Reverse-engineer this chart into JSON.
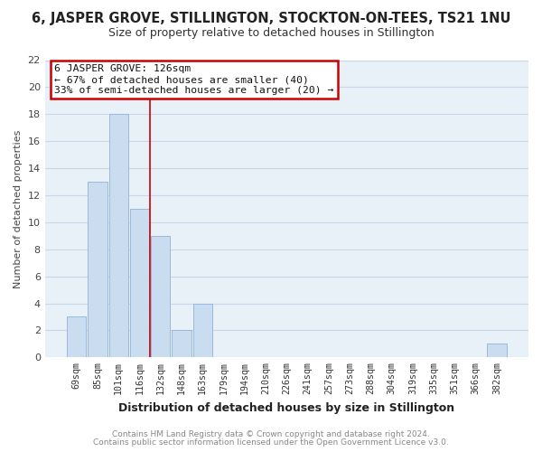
{
  "title": "6, JASPER GROVE, STILLINGTON, STOCKTON-ON-TEES, TS21 1NU",
  "subtitle": "Size of property relative to detached houses in Stillington",
  "xlabel": "Distribution of detached houses by size in Stillington",
  "ylabel": "Number of detached properties",
  "bar_labels": [
    "69sqm",
    "85sqm",
    "101sqm",
    "116sqm",
    "132sqm",
    "148sqm",
    "163sqm",
    "179sqm",
    "194sqm",
    "210sqm",
    "226sqm",
    "241sqm",
    "257sqm",
    "273sqm",
    "288sqm",
    "304sqm",
    "319sqm",
    "335sqm",
    "351sqm",
    "366sqm",
    "382sqm"
  ],
  "bar_values": [
    3,
    13,
    18,
    11,
    9,
    2,
    4,
    0,
    0,
    0,
    0,
    0,
    0,
    0,
    0,
    0,
    0,
    0,
    0,
    0,
    1
  ],
  "bar_color": "#c9dcf0",
  "bar_edge_color": "#9ab8d8",
  "ylim": [
    0,
    22
  ],
  "yticks": [
    0,
    2,
    4,
    6,
    8,
    10,
    12,
    14,
    16,
    18,
    20,
    22
  ],
  "annotation_title": "6 JASPER GROVE: 126sqm",
  "annotation_line1": "← 67% of detached houses are smaller (40)",
  "annotation_line2": "33% of semi-detached houses are larger (20) →",
  "annotation_box_color": "#ffffff",
  "annotation_box_edge": "#cc0000",
  "vline_x": 3.5,
  "vline_color": "#cc0000",
  "footer1": "Contains HM Land Registry data © Crown copyright and database right 2024.",
  "footer2": "Contains public sector information licensed under the Open Government Licence v3.0.",
  "grid_color": "#c8d8e8",
  "bg_color": "#ffffff",
  "plot_bg_color": "#e8f0f8"
}
